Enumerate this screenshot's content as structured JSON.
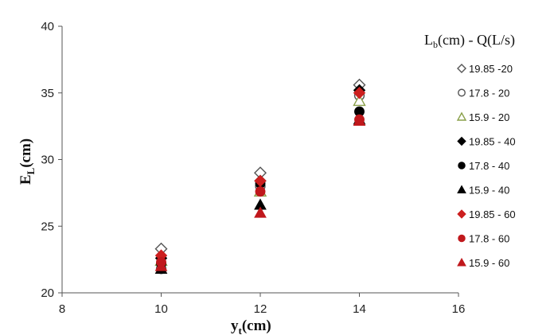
{
  "chart_data": {
    "type": "scatter",
    "title": "",
    "xlabel": {
      "main": "y",
      "sub": "t",
      "unit": "(cm)"
    },
    "ylabel": {
      "main": "E",
      "sub": "L",
      "unit": "(cm)"
    },
    "xlim": [
      8,
      16
    ],
    "ylim": [
      20,
      40
    ],
    "xticks": [
      8,
      10,
      12,
      14,
      16
    ],
    "yticks": [
      20,
      25,
      30,
      35,
      40
    ],
    "grid": false,
    "legend_position": "right",
    "legend_title": {
      "L": "L",
      "sub": "b",
      "rest": "(cm) - Q(L/s)"
    },
    "series": [
      {
        "name": "19.85 -20",
        "marker": "diamond-open",
        "color": "#555555",
        "x": [
          10,
          12,
          14
        ],
        "y": [
          23.3,
          29.0,
          35.6
        ]
      },
      {
        "name": "17.8 - 20",
        "marker": "circle-open",
        "color": "#555555",
        "x": [
          10,
          12,
          14
        ],
        "y": [
          21.8,
          28.0,
          34.8
        ]
      },
      {
        "name": "15.9 - 20",
        "marker": "triangle-open",
        "color": "#8aa04a",
        "x": [
          10,
          12,
          14
        ],
        "y": [
          22.4,
          27.6,
          34.4
        ]
      },
      {
        "name": "19.85 - 40",
        "marker": "diamond",
        "color": "#000000",
        "x": [
          10,
          12,
          14
        ],
        "y": [
          22.6,
          28.4,
          35.2
        ]
      },
      {
        "name": "17.8 - 40",
        "marker": "circle",
        "color": "#000000",
        "x": [
          10,
          12,
          14
        ],
        "y": [
          22.2,
          28.2,
          33.6
        ]
      },
      {
        "name": "15.9 - 40",
        "marker": "triangle",
        "color": "#000000",
        "x": [
          10,
          12,
          14
        ],
        "y": [
          21.8,
          26.6,
          33.0
        ]
      },
      {
        "name": "19.85 - 60",
        "marker": "diamond",
        "color": "#cc1f1f",
        "x": [
          10,
          12,
          14
        ],
        "y": [
          22.8,
          28.4,
          35.0
        ]
      },
      {
        "name": "17.8 - 60",
        "marker": "circle",
        "color": "#c0181c",
        "x": [
          10,
          12,
          14
        ],
        "y": [
          22.3,
          27.6,
          33.0
        ]
      },
      {
        "name": "15.9 - 60",
        "marker": "triangle",
        "color": "#c0181c",
        "x": [
          10,
          12,
          14
        ],
        "y": [
          22.0,
          26.0,
          32.9
        ]
      }
    ]
  }
}
